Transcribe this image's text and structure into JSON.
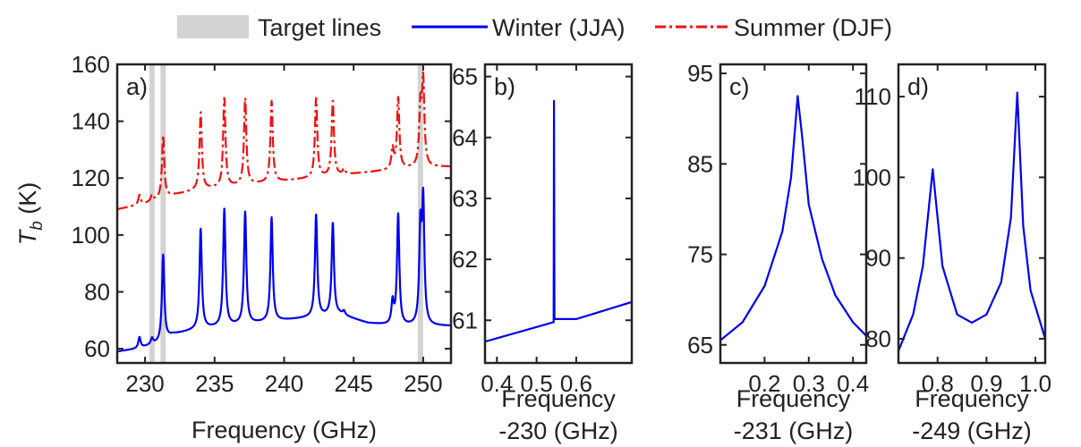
{
  "legend": {
    "items": [
      {
        "label": "Target lines",
        "kind": "patch",
        "color": "#d3d3d3"
      },
      {
        "label": "Winter (JJA)",
        "kind": "solid",
        "color": "#0000ee"
      },
      {
        "label": "Summer (DJF)",
        "kind": "dashdot",
        "color": "#ee1111"
      }
    ],
    "placement": "top-center"
  },
  "colors": {
    "winter": "#0000ee",
    "summer": "#ee1111",
    "target": "#d3d3d3",
    "axis": "#222222"
  },
  "chart_data": [
    {
      "panel": "a)",
      "type": "line",
      "xlabel": "Frequency (GHz)",
      "ylabel": "T_b (K)",
      "ylabel_main": "T",
      "ylabel_sub": "b",
      "ylabel_rest": " (K)",
      "xlim": [
        228,
        252
      ],
      "ylim": [
        55,
        160
      ],
      "xticks": [
        230,
        235,
        240,
        245,
        250
      ],
      "yticks": [
        60,
        80,
        100,
        120,
        140,
        160
      ],
      "target_lines": [
        230.5,
        231.3,
        249.8
      ],
      "series": [
        {
          "name": "Winter (JJA)",
          "style": "solid",
          "baseline": [
            [
              228,
              59
            ],
            [
              229.5,
              60
            ],
            [
              231,
              62
            ],
            [
              232,
              65
            ],
            [
              234,
              67
            ],
            [
              236,
              68
            ],
            [
              238,
              69
            ],
            [
              240,
              70
            ],
            [
              242,
              71
            ],
            [
              244,
              72
            ],
            [
              246,
              69
            ],
            [
              248,
              68
            ],
            [
              250,
              68
            ],
            [
              252,
              68
            ]
          ],
          "peaks": [
            [
              229.6,
              64
            ],
            [
              230.5,
              63.5
            ],
            [
              231.3,
              93
            ],
            [
              234.0,
              102
            ],
            [
              235.7,
              109
            ],
            [
              237.2,
              108
            ],
            [
              239.1,
              106
            ],
            [
              242.3,
              107
            ],
            [
              243.5,
              104
            ],
            [
              244.3,
              73
            ],
            [
              247.8,
              76
            ],
            [
              248.2,
              107
            ],
            [
              249.8,
              100
            ],
            [
              250.0,
              110
            ]
          ]
        },
        {
          "name": "Summer (DJF)",
          "style": "dashdot",
          "baseline": [
            [
              228,
              109
            ],
            [
              230,
              111
            ],
            [
              232,
              114
            ],
            [
              234,
              116
            ],
            [
              236,
              117
            ],
            [
              238,
              118
            ],
            [
              240,
              119
            ],
            [
              242,
              120
            ],
            [
              244,
              121
            ],
            [
              246,
              122
            ],
            [
              248,
              123
            ],
            [
              250,
              124
            ],
            [
              252,
              124
            ]
          ],
          "peaks": [
            [
              229.6,
              114
            ],
            [
              230.5,
              114
            ],
            [
              231.3,
              135
            ],
            [
              234.0,
              143
            ],
            [
              235.7,
              148
            ],
            [
              237.2,
              148
            ],
            [
              239.1,
              147
            ],
            [
              242.3,
              148
            ],
            [
              243.5,
              147
            ],
            [
              244.3,
              123
            ],
            [
              247.8,
              130
            ],
            [
              248.2,
              148
            ],
            [
              249.8,
              144
            ],
            [
              250.0,
              153
            ]
          ]
        }
      ]
    },
    {
      "panel": "b)",
      "type": "line",
      "xlabel_line1": "Frequency",
      "xlabel_line2": "-230 (GHz)",
      "xlim": [
        0.37,
        0.74
      ],
      "ylim": [
        60.3,
        65.2
      ],
      "xticks": [
        0.4,
        0.5,
        0.6
      ],
      "xtick_labels": [
        "0.4",
        "0.5",
        "0.6"
      ],
      "yticks": [
        61,
        62,
        63,
        64,
        65
      ],
      "series": [
        {
          "name": "Winter (JJA)",
          "style": "solid",
          "x": [
            0.37,
            0.5,
            0.543,
            0.544,
            0.545,
            0.6,
            0.74
          ],
          "y": [
            60.65,
            60.89,
            60.97,
            64.6,
            61.02,
            61.02,
            61.3
          ]
        }
      ]
    },
    {
      "panel": "c)",
      "type": "line",
      "xlabel_line1": "Frequency",
      "xlabel_line2": "-231 (GHz)",
      "xlim": [
        0.1,
        0.43
      ],
      "ylim": [
        63,
        96
      ],
      "xticks": [
        0.2,
        0.3,
        0.4
      ],
      "xtick_labels": [
        "0.2",
        "0.3",
        "0.4"
      ],
      "yticks": [
        65,
        75,
        85,
        95
      ],
      "series": [
        {
          "name": "Winter (JJA)",
          "style": "solid",
          "x": [
            0.1,
            0.15,
            0.2,
            0.24,
            0.26,
            0.275,
            0.285,
            0.3,
            0.33,
            0.36,
            0.4,
            0.43
          ],
          "y": [
            65.5,
            67.5,
            71.5,
            77.5,
            83.5,
            92.5,
            88,
            80.5,
            74.5,
            70.5,
            67.5,
            66
          ]
        }
      ]
    },
    {
      "panel": "d)",
      "type": "line",
      "xlabel_line1": "Frequency",
      "xlabel_line2": "-249 (GHz)",
      "xlim": [
        0.72,
        1.02
      ],
      "ylim": [
        77,
        114
      ],
      "xticks": [
        0.8,
        0.9,
        1.0
      ],
      "xtick_labels": [
        "0.8",
        "0.9",
        "1.0"
      ],
      "yticks": [
        80,
        90,
        100,
        110
      ],
      "series": [
        {
          "name": "Winter (JJA)",
          "style": "solid",
          "x": [
            0.72,
            0.75,
            0.77,
            0.79,
            0.81,
            0.84,
            0.87,
            0.9,
            0.93,
            0.95,
            0.963,
            0.975,
            0.99,
            1.02
          ],
          "y": [
            78.5,
            83,
            89,
            101,
            89,
            83,
            82,
            83,
            87,
            95,
            110.5,
            94,
            86,
            80
          ]
        }
      ]
    }
  ]
}
